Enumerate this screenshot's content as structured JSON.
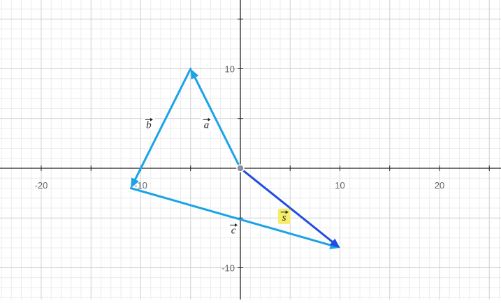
{
  "chart_data": {
    "type": "vector-plot",
    "x_range": [
      -24,
      26
    ],
    "y_range": [
      -13,
      17
    ],
    "grid": true,
    "x_ticks": [
      {
        "value": -20,
        "label": "-20"
      },
      {
        "value": -10,
        "label": "-10"
      },
      {
        "value": 10,
        "label": "10"
      },
      {
        "value": 20,
        "label": "20"
      }
    ],
    "y_ticks": [
      {
        "value": 10,
        "label": "10"
      },
      {
        "value": -10,
        "label": "-10"
      }
    ],
    "vectors": [
      {
        "id": "a",
        "label": "a",
        "from": [
          0,
          0
        ],
        "to": [
          -5,
          10
        ],
        "color": "#1aa3e8",
        "label_at": [
          -3.4,
          4.4
        ]
      },
      {
        "id": "b",
        "label": "b",
        "from": [
          -5,
          10
        ],
        "to": [
          -11,
          -2
        ],
        "color": "#1aa3e8",
        "label_at": [
          -9.2,
          4.4
        ]
      },
      {
        "id": "c",
        "label": "c",
        "from": [
          -11,
          -2
        ],
        "to": [
          10,
          -8
        ],
        "color": "#1aa3e8",
        "label_at": [
          -0.7,
          -6.2
        ]
      },
      {
        "id": "s",
        "label": "s",
        "from": [
          0,
          0
        ],
        "to": [
          10,
          -8
        ],
        "color": "#1f4de0",
        "label_at": [
          4.4,
          -4.9
        ],
        "highlight": "#f4ee6a"
      }
    ],
    "origin_point": {
      "color": "#8a8fa0"
    }
  }
}
